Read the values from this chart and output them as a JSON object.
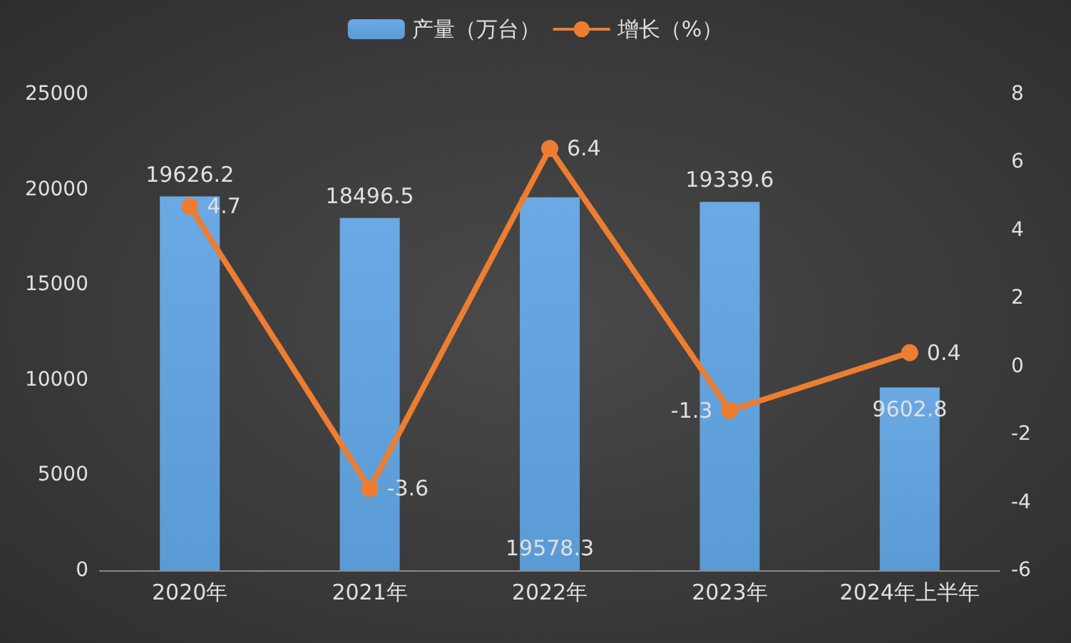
{
  "chart_data": {
    "type": "bar",
    "categories": [
      "2020年",
      "2021年",
      "2022年",
      "2023年",
      "2024年上半年"
    ],
    "series": [
      {
        "name": "产量（万台）",
        "type": "bar",
        "color": "#5b9bd5",
        "values": [
          19626.2,
          18496.5,
          19578.3,
          19339.6,
          9602.8
        ]
      },
      {
        "name": "增长（%）",
        "type": "line",
        "axis": "y2",
        "color": "#ed7d31",
        "values": [
          4.7,
          -3.6,
          6.4,
          -1.3,
          0.4
        ]
      }
    ],
    "ylim": [
      0,
      25000
    ],
    "yticks": [
      0,
      5000,
      10000,
      15000,
      20000,
      25000
    ],
    "y2lim": [
      -6,
      8
    ],
    "y2ticks": [
      -6,
      -4,
      -2,
      0,
      2,
      4,
      6,
      8
    ],
    "data_labels": true,
    "legend": "top",
    "grid": false,
    "marker": "circle"
  }
}
